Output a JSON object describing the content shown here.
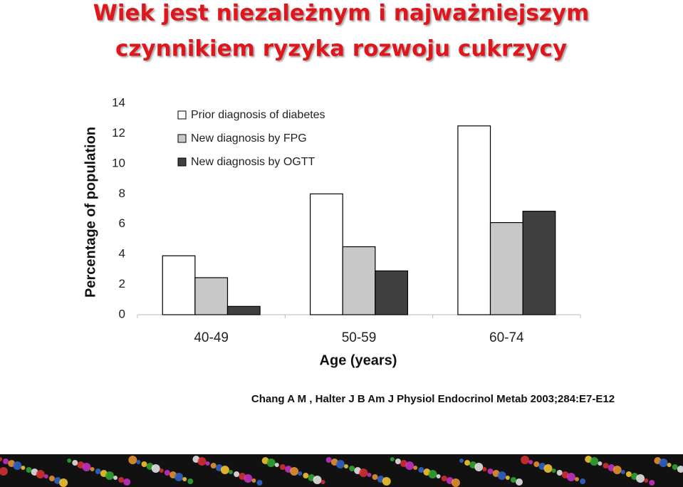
{
  "chart_data": {
    "type": "bar",
    "title": [
      "Wiek jest niezależnym  i najważniejszym",
      "czynnikiem ryzyka rozwoju cukrzycy"
    ],
    "y_label": "Percentage of population",
    "x_label": "Age (years)",
    "source": "Chang A M , Halter J B Am J Physiol Endocrinol Metab 2003;284:E7-E12",
    "categories": [
      "40-49",
      "50-59",
      "60-74"
    ],
    "series": [
      {
        "name": "Prior diagnosis of diabetes",
        "color": "#ffffff",
        "values": [
          3.9,
          8.0,
          12.5
        ]
      },
      {
        "name": "New diagnosis by FPG",
        "color": "#c8c8c8",
        "values": [
          2.45,
          4.5,
          6.1
        ]
      },
      {
        "name": "New diagnosis by OGTT",
        "color": "#404040",
        "values": [
          0.55,
          2.9,
          6.85
        ]
      }
    ],
    "ylim": [
      0,
      14
    ],
    "yticks": [
      0,
      2,
      4,
      6,
      8,
      10,
      12,
      14
    ],
    "grid": false,
    "legend": "top-left"
  }
}
